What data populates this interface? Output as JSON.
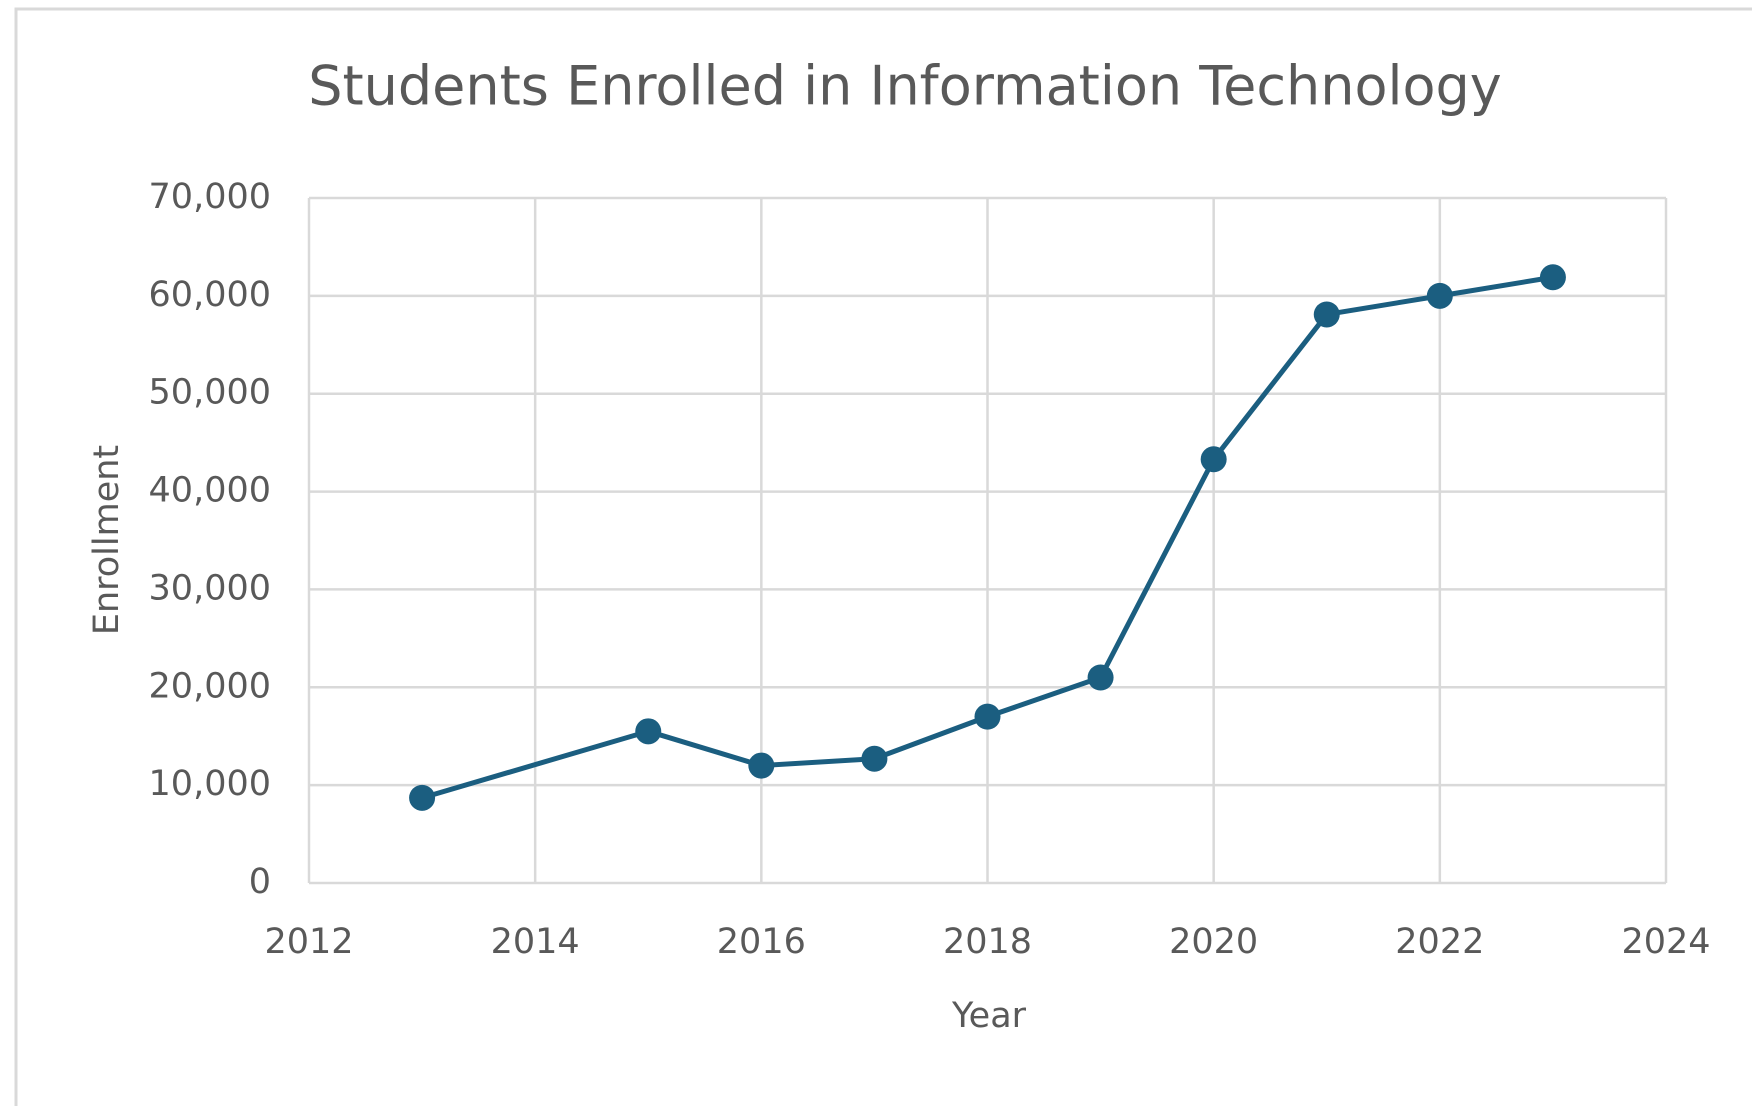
{
  "chart_data": {
    "type": "line",
    "title": "Students Enrolled in Information Technology",
    "x_label": "Year",
    "y_label": "Enrollment",
    "x": [
      2013,
      2015,
      2016,
      2017,
      2018,
      2019,
      2020,
      2021,
      2022,
      2023
    ],
    "values": [
      8700,
      15500,
      12000,
      12700,
      17000,
      21000,
      43300,
      58100,
      60000,
      61900
    ],
    "color": "#1b5e80",
    "xlim": [
      2012,
      2024
    ],
    "xticks": [
      2012,
      2014,
      2016,
      2018,
      2020,
      2022,
      2024
    ],
    "ylim": [
      0,
      70000
    ],
    "yticks": [
      0,
      {
        "value": 10000,
        "label": "10,000"
      },
      {
        "value": 20000,
        "label": "20,000"
      },
      {
        "value": 30000,
        "label": "30,000"
      },
      {
        "value": 40000,
        "label": "40,000"
      },
      {
        "value": 50000,
        "label": "50,000"
      },
      {
        "value": 60000,
        "label": "60,000"
      },
      {
        "value": 70000,
        "label": "70,000"
      }
    ],
    "grid": true
  }
}
